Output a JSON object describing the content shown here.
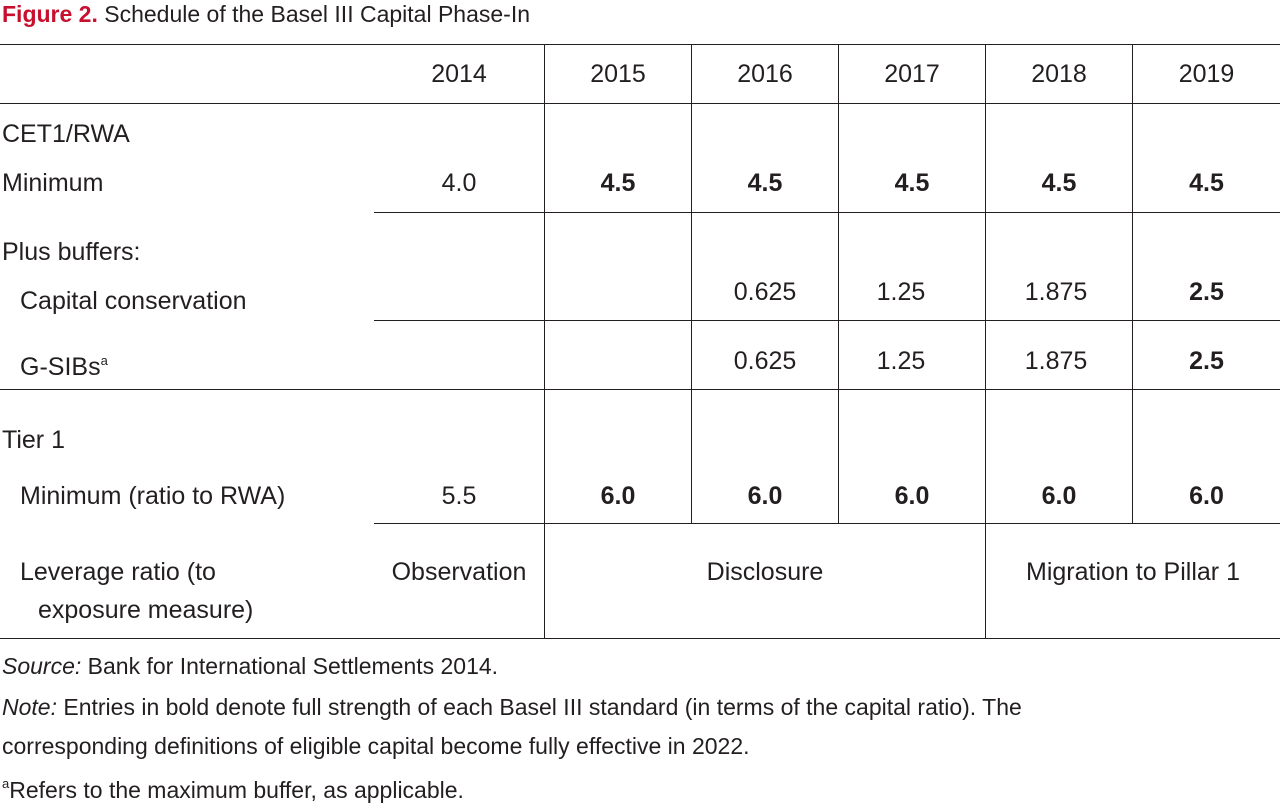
{
  "figure": {
    "label": "Figure 2.",
    "caption": "Schedule of the Basel III Capital Phase-In"
  },
  "table": {
    "years": [
      "2014",
      "2015",
      "2016",
      "2017",
      "2018",
      "2019"
    ],
    "cet1": {
      "heading": "CET1/RWA",
      "minimum_label": "Minimum",
      "minimum_values": [
        "4.0",
        "4.5",
        "4.5",
        "4.5",
        "4.5",
        "4.5"
      ],
      "minimum_bold": [
        false,
        true,
        true,
        true,
        true,
        true
      ]
    },
    "buffers": {
      "heading": "Plus buffers:",
      "capital_conservation": {
        "label": "Capital conservation",
        "values": [
          "",
          "",
          "0.625",
          "1.25",
          "1.875",
          "2.5"
        ],
        "bold": [
          false,
          false,
          false,
          false,
          false,
          true
        ]
      },
      "gsibs": {
        "label": "G-SIBs",
        "superscript": "a",
        "values": [
          "",
          "",
          "0.625",
          "1.25",
          "1.875",
          "2.5"
        ],
        "bold": [
          false,
          false,
          false,
          false,
          false,
          true
        ]
      }
    },
    "tier1": {
      "heading": "Tier 1",
      "minimum_label": "Minimum (ratio to RWA)",
      "minimum_values": [
        "5.5",
        "6.0",
        "6.0",
        "6.0",
        "6.0",
        "6.0"
      ],
      "minimum_bold": [
        false,
        true,
        true,
        true,
        true,
        true
      ]
    },
    "leverage": {
      "label_line1": "Leverage ratio (to",
      "label_line2": "exposure measure)",
      "phase_2014": "Observation",
      "phase_2015_2017": "Disclosure",
      "phase_2018_2019": "Migration to Pillar 1"
    }
  },
  "notes": {
    "source_label": "Source:",
    "source_text": " Bank for International Settlements 2014.",
    "note_label": "Note:",
    "note_line1": " Entries in bold denote full strength of each Basel III standard (in terms of the capital ratio). The",
    "note_line2": "corresponding definitions of eligible capital become fully effective in 2022.",
    "footnote_marker": "a",
    "footnote_text": "Refers to the maximum buffer, as applicable."
  },
  "colors": {
    "figure_label": "#c8102e",
    "text": "#231f20",
    "rules": "#231f20"
  }
}
